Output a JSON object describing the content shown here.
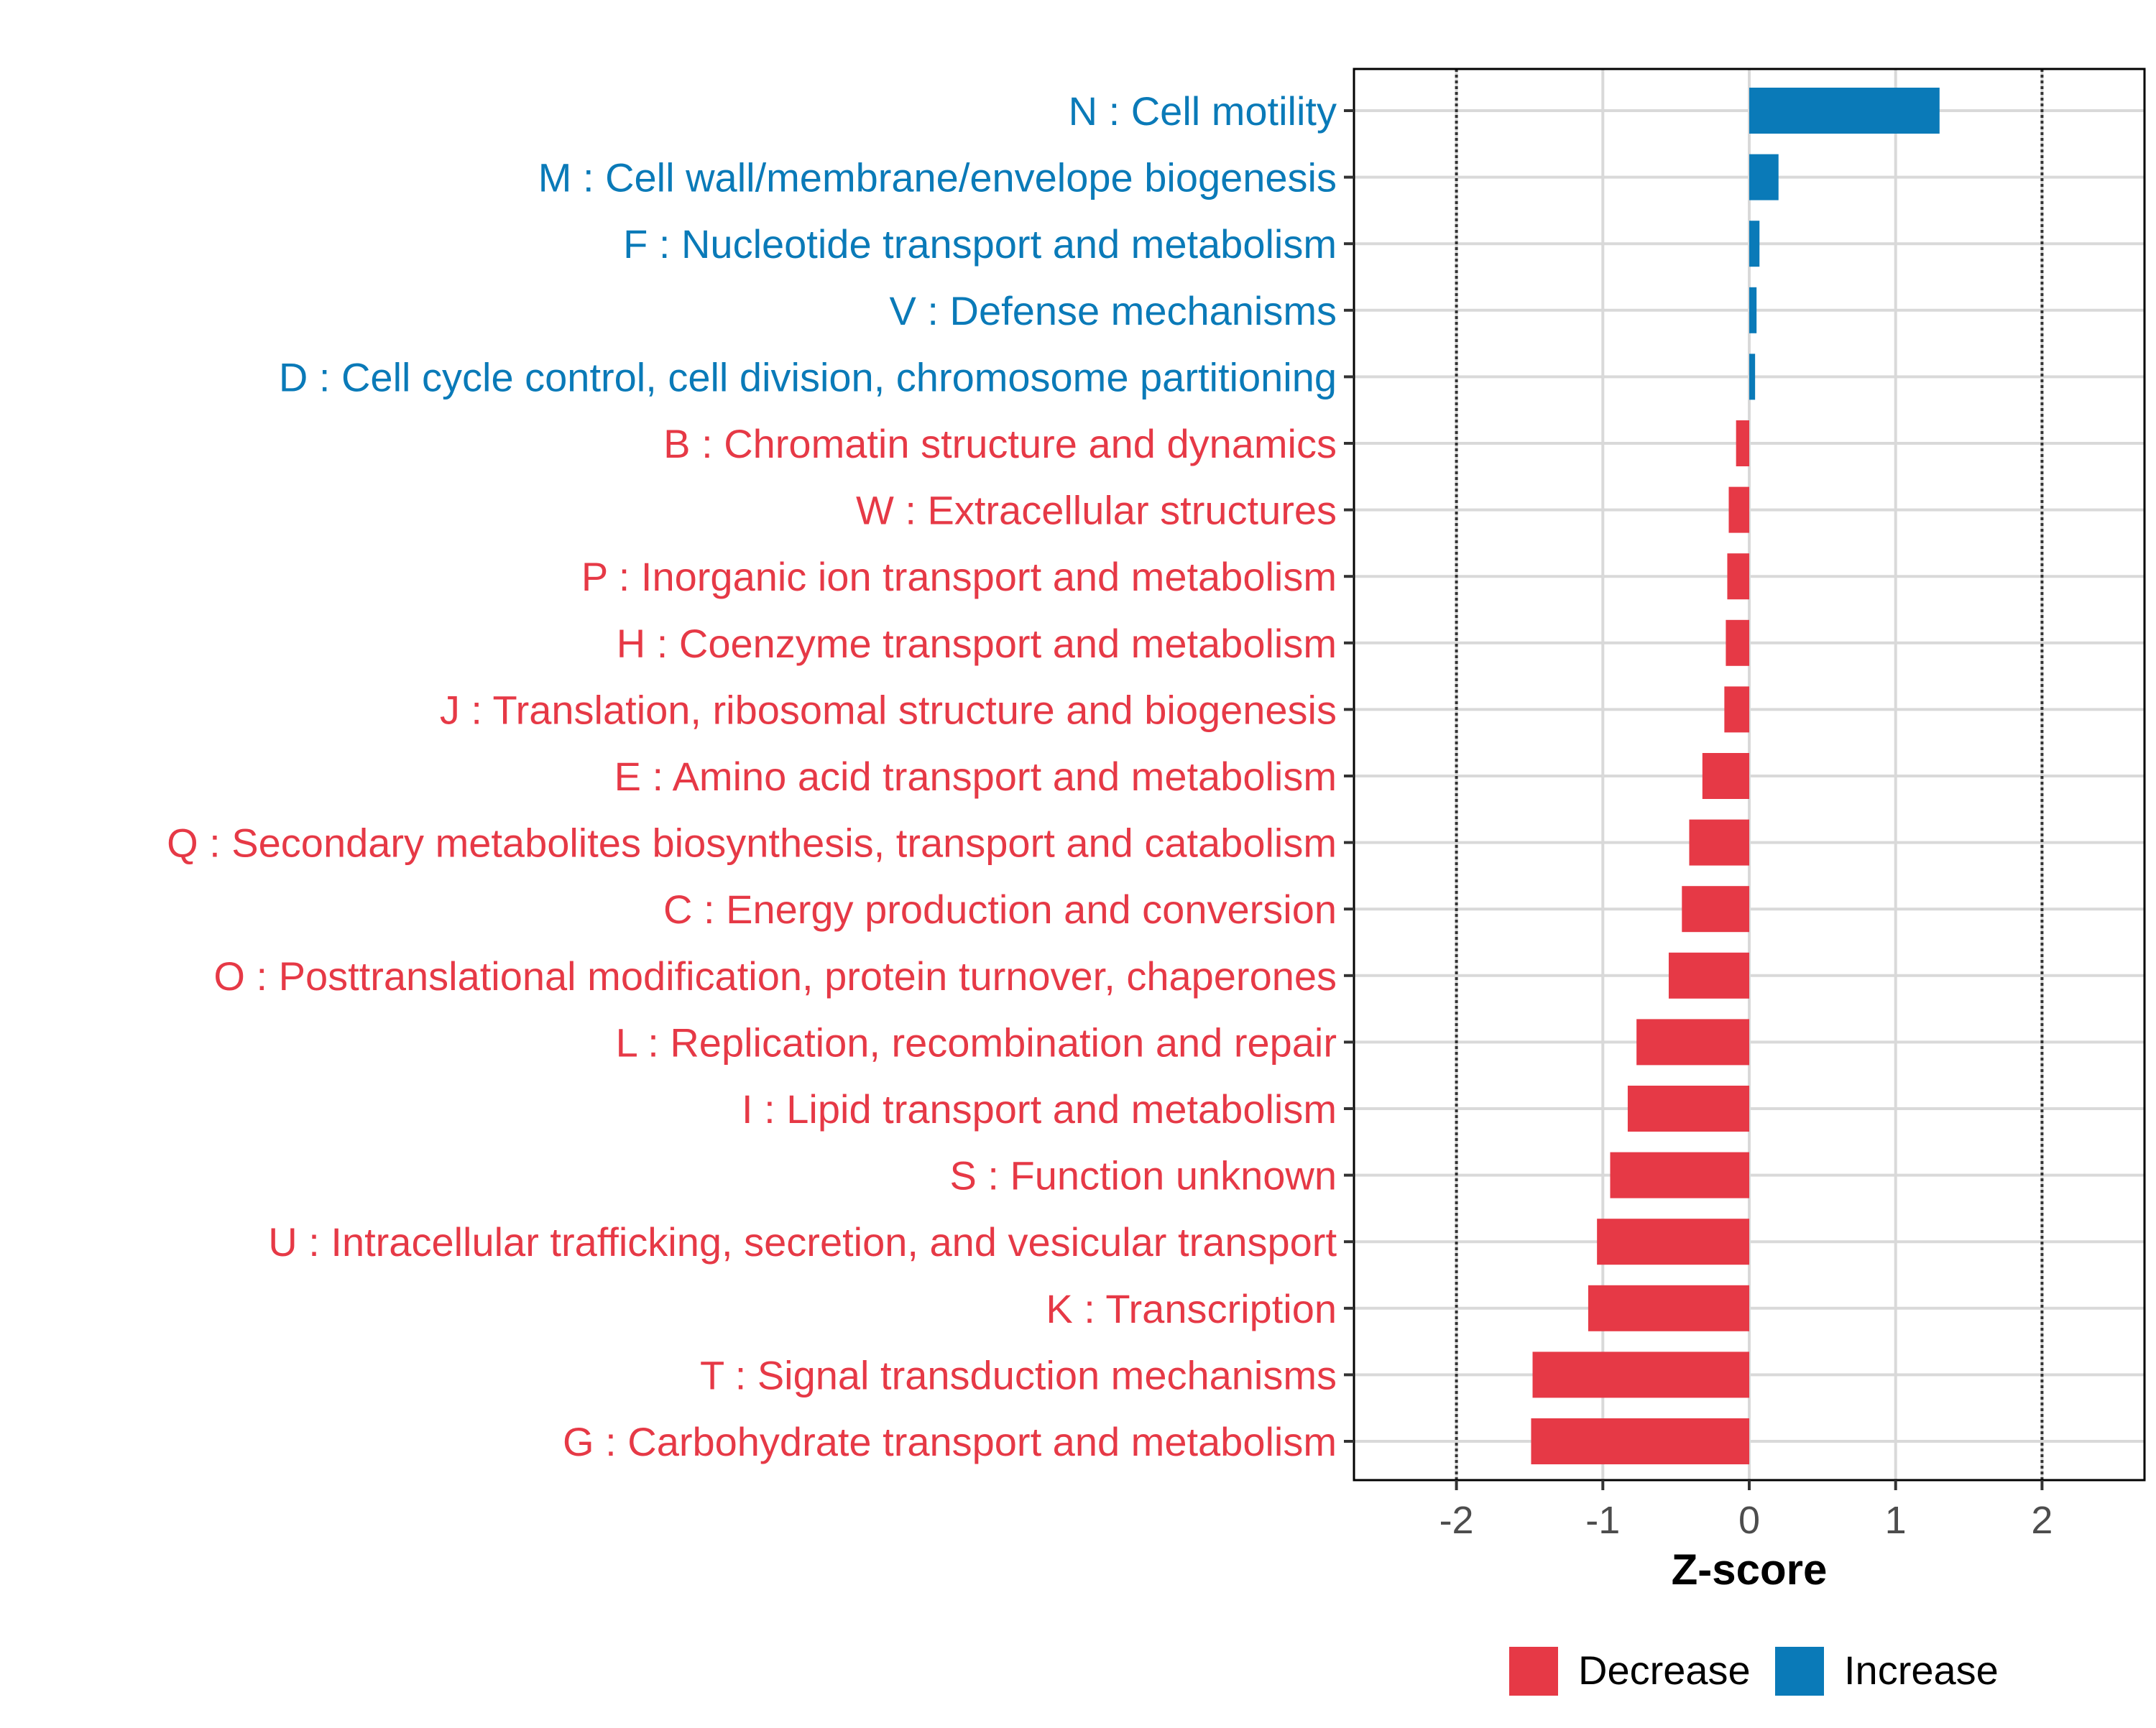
{
  "chart_data": {
    "type": "bar",
    "orientation": "horizontal",
    "xlabel": "Z-score",
    "xlim": [
      -2.7,
      2.7
    ],
    "x_ticks": [
      -2,
      -1,
      0,
      1,
      2
    ],
    "x_tick_labels": [
      "-2",
      "-1",
      "0",
      "1",
      "2"
    ],
    "reference_lines": [
      -2,
      2
    ],
    "grid": true,
    "legend_position": "bottom",
    "colors": {
      "Decrease": "#E63946",
      "Increase": "#0A7AB8"
    },
    "legend": [
      {
        "label": "Decrease",
        "color": "#E63946"
      },
      {
        "label": "Increase",
        "color": "#0A7AB8"
      }
    ],
    "categories": [
      "N : Cell motility",
      "M : Cell wall/membrane/envelope biogenesis",
      "F : Nucleotide transport and metabolism",
      "V : Defense mechanisms",
      "D : Cell cycle control, cell division, chromosome partitioning",
      "B : Chromatin structure and dynamics",
      "W : Extracellular structures",
      "P : Inorganic ion transport and metabolism",
      "H : Coenzyme transport and metabolism",
      "J : Translation, ribosomal structure and biogenesis",
      "E : Amino acid transport and metabolism",
      "Q : Secondary metabolites biosynthesis, transport and catabolism",
      "C : Energy production and conversion",
      "O : Posttranslational modification, protein turnover, chaperones",
      "L : Replication, recombination and repair",
      "I : Lipid transport and metabolism",
      "S : Function unknown",
      "U : Intracellular trafficking, secretion, and vesicular transport",
      "K : Transcription",
      "T : Signal transduction mechanisms",
      "G : Carbohydrate transport and metabolism"
    ],
    "values": [
      1.3,
      0.2,
      0.07,
      0.05,
      0.04,
      -0.09,
      -0.14,
      -0.15,
      -0.16,
      -0.17,
      -0.32,
      -0.41,
      -0.46,
      -0.55,
      -0.77,
      -0.83,
      -0.95,
      -1.04,
      -1.1,
      -1.48,
      -1.49
    ],
    "direction": [
      "Increase",
      "Increase",
      "Increase",
      "Increase",
      "Increase",
      "Decrease",
      "Decrease",
      "Decrease",
      "Decrease",
      "Decrease",
      "Decrease",
      "Decrease",
      "Decrease",
      "Decrease",
      "Decrease",
      "Decrease",
      "Decrease",
      "Decrease",
      "Decrease",
      "Decrease",
      "Decrease"
    ]
  }
}
